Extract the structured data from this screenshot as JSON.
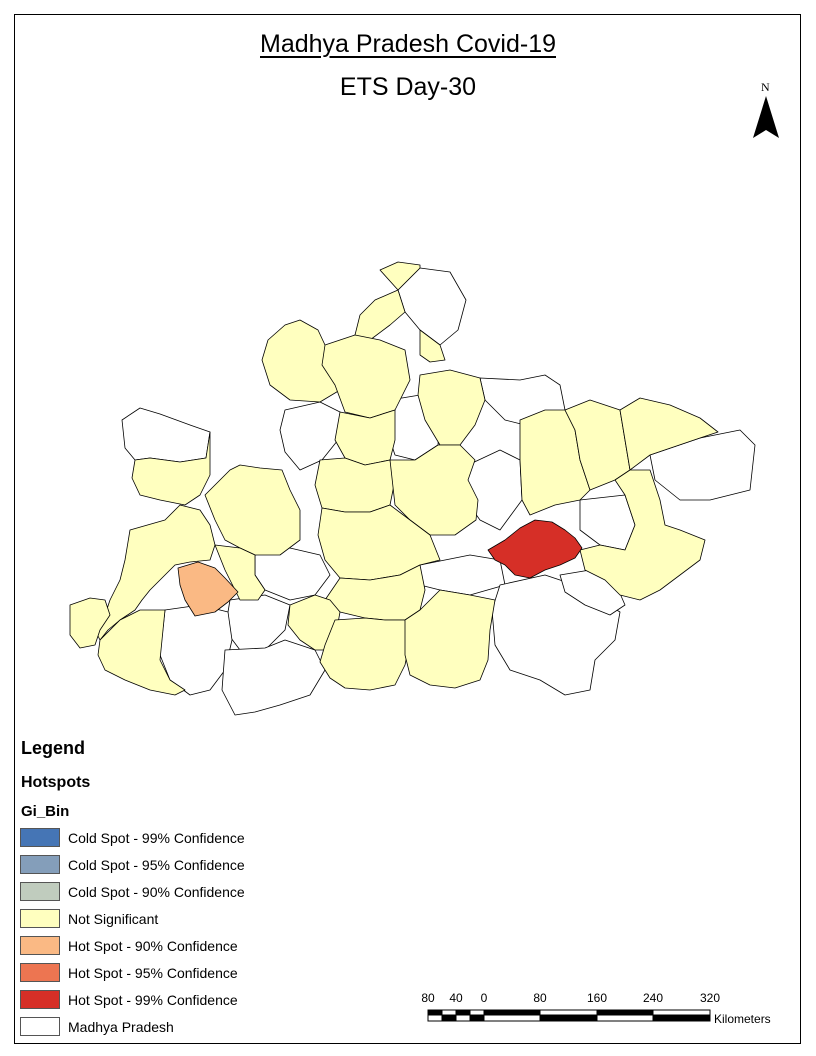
{
  "title": "Madhya Pradesh Covid-19",
  "subtitle": "ETS Day-30",
  "north_label": "N",
  "legend": {
    "heading": "Legend",
    "layer": "Hotspots",
    "field": "Gi_Bin",
    "items": [
      {
        "label": "Cold Spot - 99% Confidence",
        "color": "#4575b5"
      },
      {
        "label": "Cold Spot - 95% Confidence",
        "color": "#849eba"
      },
      {
        "label": "Cold Spot - 90% Confidence",
        "color": "#c0ccbe"
      },
      {
        "label": "Not Significant",
        "color": "#ffffbf"
      },
      {
        "label": "Hot Spot - 90% Confidence",
        "color": "#fab984"
      },
      {
        "label": "Hot Spot - 95% Confidence",
        "color": "#ed7551"
      },
      {
        "label": "Hot Spot - 99% Confidence",
        "color": "#d62f27"
      },
      {
        "label": "Madhya Pradesh",
        "color": "#ffffff"
      }
    ]
  },
  "scale": {
    "ticks": [
      "80",
      "40",
      "0",
      "80",
      "160",
      "240",
      "320"
    ],
    "unit": "Kilometers"
  },
  "colors": {
    "not_significant": "#ffffbf",
    "hot90": "#fab984",
    "hot99": "#d62f27",
    "outline": "#000000"
  }
}
